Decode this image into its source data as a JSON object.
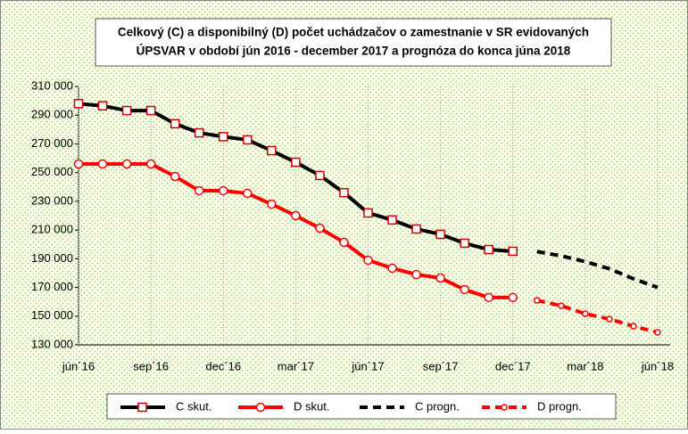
{
  "chart_data": {
    "type": "line",
    "title": [
      "Celkový (C) a disponibilný (D) počet uchádzačov o zamestnanie v SR evidovaných",
      "ÚPSVAR v období jún 2016 - december 2017 a prognóza do konca júna 2018"
    ],
    "categories": [
      "jún´16",
      null,
      null,
      "sep´16",
      null,
      null,
      "dec´16",
      null,
      null,
      "mar´17",
      null,
      null,
      "jún´17",
      null,
      null,
      "sep´17",
      null,
      null,
      "dec´17",
      null,
      null,
      "mar´18",
      null,
      null,
      "jún´18"
    ],
    "series": [
      {
        "name": "C skut.",
        "color": "#000000",
        "dashed": false,
        "marker": "square",
        "values": [
          298000,
          296500,
          293200,
          293200,
          284000,
          277700,
          275000,
          272800,
          265300,
          257200,
          248000,
          236000,
          221900,
          217000,
          210700,
          207000,
          200800,
          196400,
          195200,
          null,
          null,
          null,
          null,
          null,
          null
        ]
      },
      {
        "name": "D skut.",
        "color": "#ff0000",
        "dashed": false,
        "marker": "circle",
        "values": [
          256000,
          256000,
          256000,
          256000,
          247300,
          237400,
          237400,
          235500,
          228000,
          220000,
          211300,
          201400,
          189000,
          183400,
          179000,
          176600,
          168500,
          163000,
          163000,
          null,
          null,
          null,
          null,
          null,
          null
        ]
      },
      {
        "name": "C progn.",
        "color": "#000000",
        "dashed": true,
        "marker": "none",
        "values": [
          null,
          null,
          null,
          null,
          null,
          null,
          null,
          null,
          null,
          null,
          null,
          null,
          null,
          null,
          null,
          null,
          null,
          null,
          null,
          195000,
          192000,
          188000,
          183000,
          176000,
          170000
        ]
      },
      {
        "name": "D progn.",
        "color": "#ff0000",
        "dashed": true,
        "marker": "circle",
        "values": [
          null,
          null,
          null,
          null,
          null,
          null,
          null,
          null,
          null,
          null,
          null,
          null,
          null,
          null,
          null,
          null,
          null,
          null,
          null,
          161000,
          157300,
          151700,
          148000,
          143000,
          138700
        ]
      }
    ],
    "ylim": [
      130000,
      310000
    ],
    "yticks": [
      {
        "value": 130000,
        "label": "130 000"
      },
      {
        "value": 150000,
        "label": "150 000"
      },
      {
        "value": 170000,
        "label": "170 000"
      },
      {
        "value": 190000,
        "label": "190 000"
      },
      {
        "value": 210000,
        "label": "210 000"
      },
      {
        "value": 230000,
        "label": "230 000"
      },
      {
        "value": 250000,
        "label": "250 000"
      },
      {
        "value": 270000,
        "label": "270 000"
      },
      {
        "value": 290000,
        "label": "290 000"
      },
      {
        "value": 310000,
        "label": "310 000"
      }
    ],
    "grid": true,
    "legend": "bottom"
  }
}
